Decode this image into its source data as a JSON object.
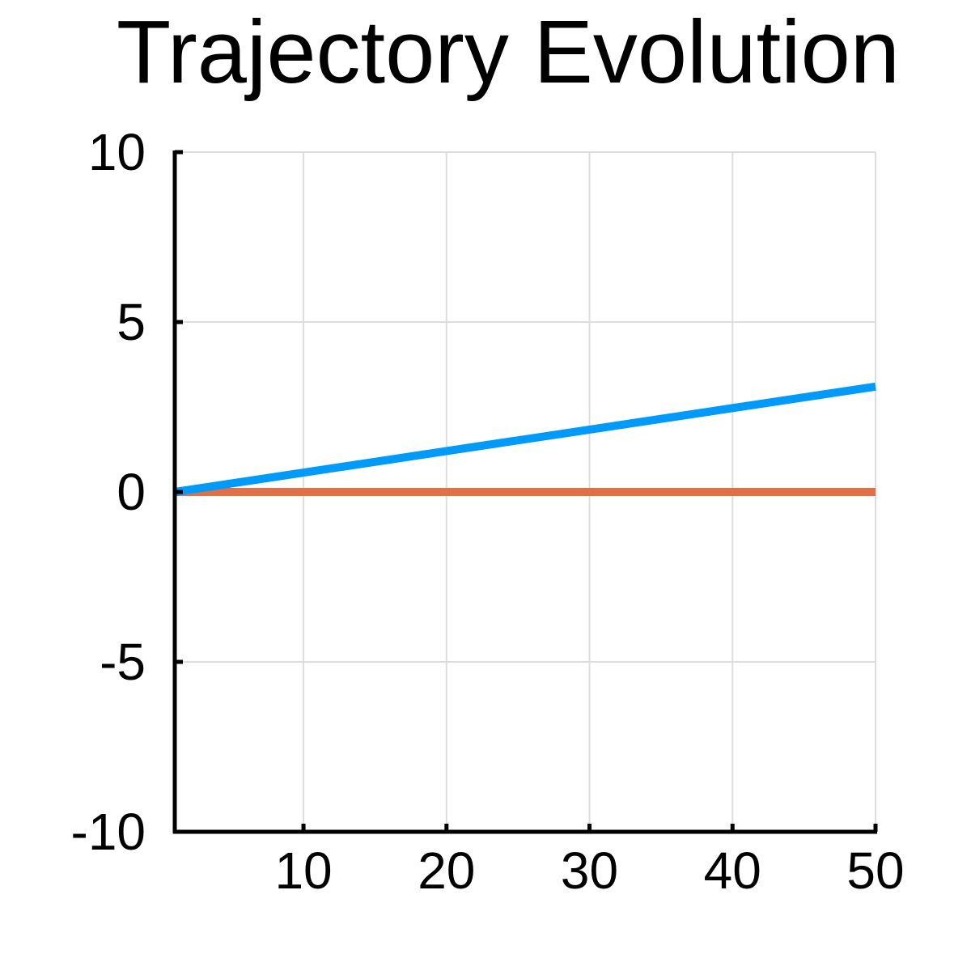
{
  "chart_data": {
    "type": "line",
    "title": "Trajectory Evolution",
    "xlabel": "",
    "ylabel": "",
    "xlim": [
      1,
      50
    ],
    "ylim": [
      -10,
      10
    ],
    "x_ticks": [
      10,
      20,
      30,
      40,
      50
    ],
    "x_tick_labels": [
      "10",
      "20",
      "30",
      "40",
      "50"
    ],
    "y_ticks": [
      10,
      5,
      0,
      -5,
      -10
    ],
    "y_tick_labels": [
      "10",
      "5",
      "0",
      "-5",
      "-10"
    ],
    "grid": true,
    "legend": "none",
    "series": [
      {
        "color": "#009AFA",
        "x": [
          1,
          50
        ],
        "y": [
          0,
          3.1
        ]
      },
      {
        "color": "#E26F46",
        "x": [
          1,
          50
        ],
        "y": [
          0,
          0
        ]
      }
    ]
  }
}
